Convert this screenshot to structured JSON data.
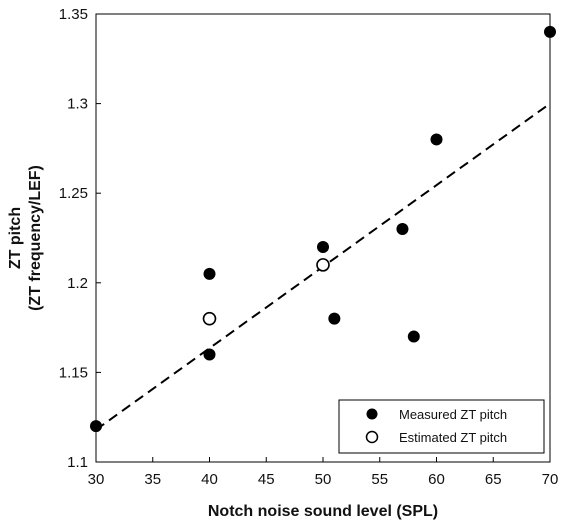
{
  "chart_data": {
    "type": "scatter",
    "xlabel": "Notch noise sound level (SPL)",
    "ylabel": [
      "ZT pitch",
      "(ZT frequency/LEF)"
    ],
    "xlim": [
      30,
      70
    ],
    "ylim": [
      1.1,
      1.35
    ],
    "xticks": [
      "30",
      "35",
      "40",
      "45",
      "50",
      "55",
      "60",
      "65",
      "70"
    ],
    "yticks": [
      "1.1",
      "1.15",
      "1.2",
      "1.25",
      "1.3",
      "1.35"
    ],
    "grid": false,
    "legend_position": "bottom-right",
    "series": [
      {
        "name": "Measured ZT pitch",
        "marker": "filled-circle",
        "color": "#000000",
        "points": [
          {
            "x": 30,
            "y": 1.12
          },
          {
            "x": 40,
            "y": 1.205
          },
          {
            "x": 40,
            "y": 1.16
          },
          {
            "x": 50,
            "y": 1.22
          },
          {
            "x": 51,
            "y": 1.18
          },
          {
            "x": 57,
            "y": 1.23
          },
          {
            "x": 58,
            "y": 1.17
          },
          {
            "x": 60,
            "y": 1.28
          },
          {
            "x": 70,
            "y": 1.34
          }
        ]
      },
      {
        "name": "Estimated ZT pitch",
        "marker": "open-circle",
        "color": "#000000",
        "points": [
          {
            "x": 40,
            "y": 1.18
          },
          {
            "x": 50,
            "y": 1.21
          }
        ]
      }
    ],
    "trend_line": {
      "style": "dashed",
      "color": "#000000",
      "points": [
        {
          "x": 30,
          "y": 1.118
        },
        {
          "x": 70,
          "y": 1.3
        }
      ]
    }
  }
}
